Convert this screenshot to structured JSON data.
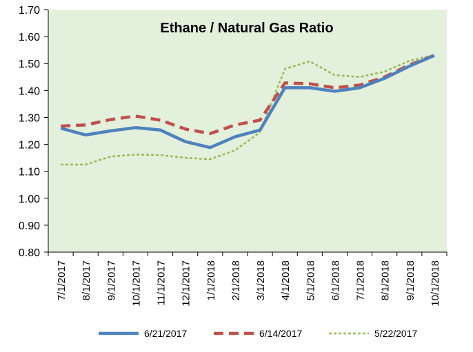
{
  "chart_data": {
    "type": "line",
    "title": "Ethane / Natural Gas Ratio",
    "xlabel": "",
    "ylabel": "",
    "ylim": [
      0.8,
      1.7
    ],
    "y_ticks": [
      "1.70",
      "1.60",
      "1.50",
      "1.40",
      "1.30",
      "1.20",
      "1.10",
      "1.00",
      "0.90",
      "0.80"
    ],
    "categories": [
      "7/1/2017",
      "8/1/2017",
      "9/1/2017",
      "10/1/2017",
      "11/1/2017",
      "12/1/2017",
      "1/1/2018",
      "2/1/2018",
      "3/1/2018",
      "4/1/2018",
      "5/1/2018",
      "6/1/2018",
      "7/1/2018",
      "8/1/2018",
      "9/1/2018",
      "10/1/2018"
    ],
    "series": [
      {
        "name": "6/21/2017",
        "style": "solid",
        "color": "#4F81BD",
        "values": [
          1.26,
          1.235,
          1.25,
          1.262,
          1.253,
          1.21,
          1.188,
          1.228,
          1.253,
          1.41,
          1.41,
          1.397,
          1.41,
          1.445,
          1.49,
          1.53
        ]
      },
      {
        "name": "6/14/2017",
        "style": "dashed",
        "color": "#C0504D",
        "values": [
          1.268,
          1.272,
          1.292,
          1.305,
          1.29,
          1.257,
          1.24,
          1.272,
          1.29,
          1.428,
          1.425,
          1.41,
          1.42,
          1.45,
          1.495,
          1.53
        ]
      },
      {
        "name": "5/22/2017",
        "style": "dotted",
        "color": "#9BBB59",
        "values": [
          1.125,
          1.125,
          1.155,
          1.162,
          1.16,
          1.15,
          1.145,
          1.178,
          1.245,
          1.48,
          1.508,
          1.457,
          1.45,
          1.47,
          1.51,
          1.532
        ]
      }
    ],
    "grid": false,
    "legend_position": "bottom",
    "plot_background": "#E3F0DC"
  }
}
